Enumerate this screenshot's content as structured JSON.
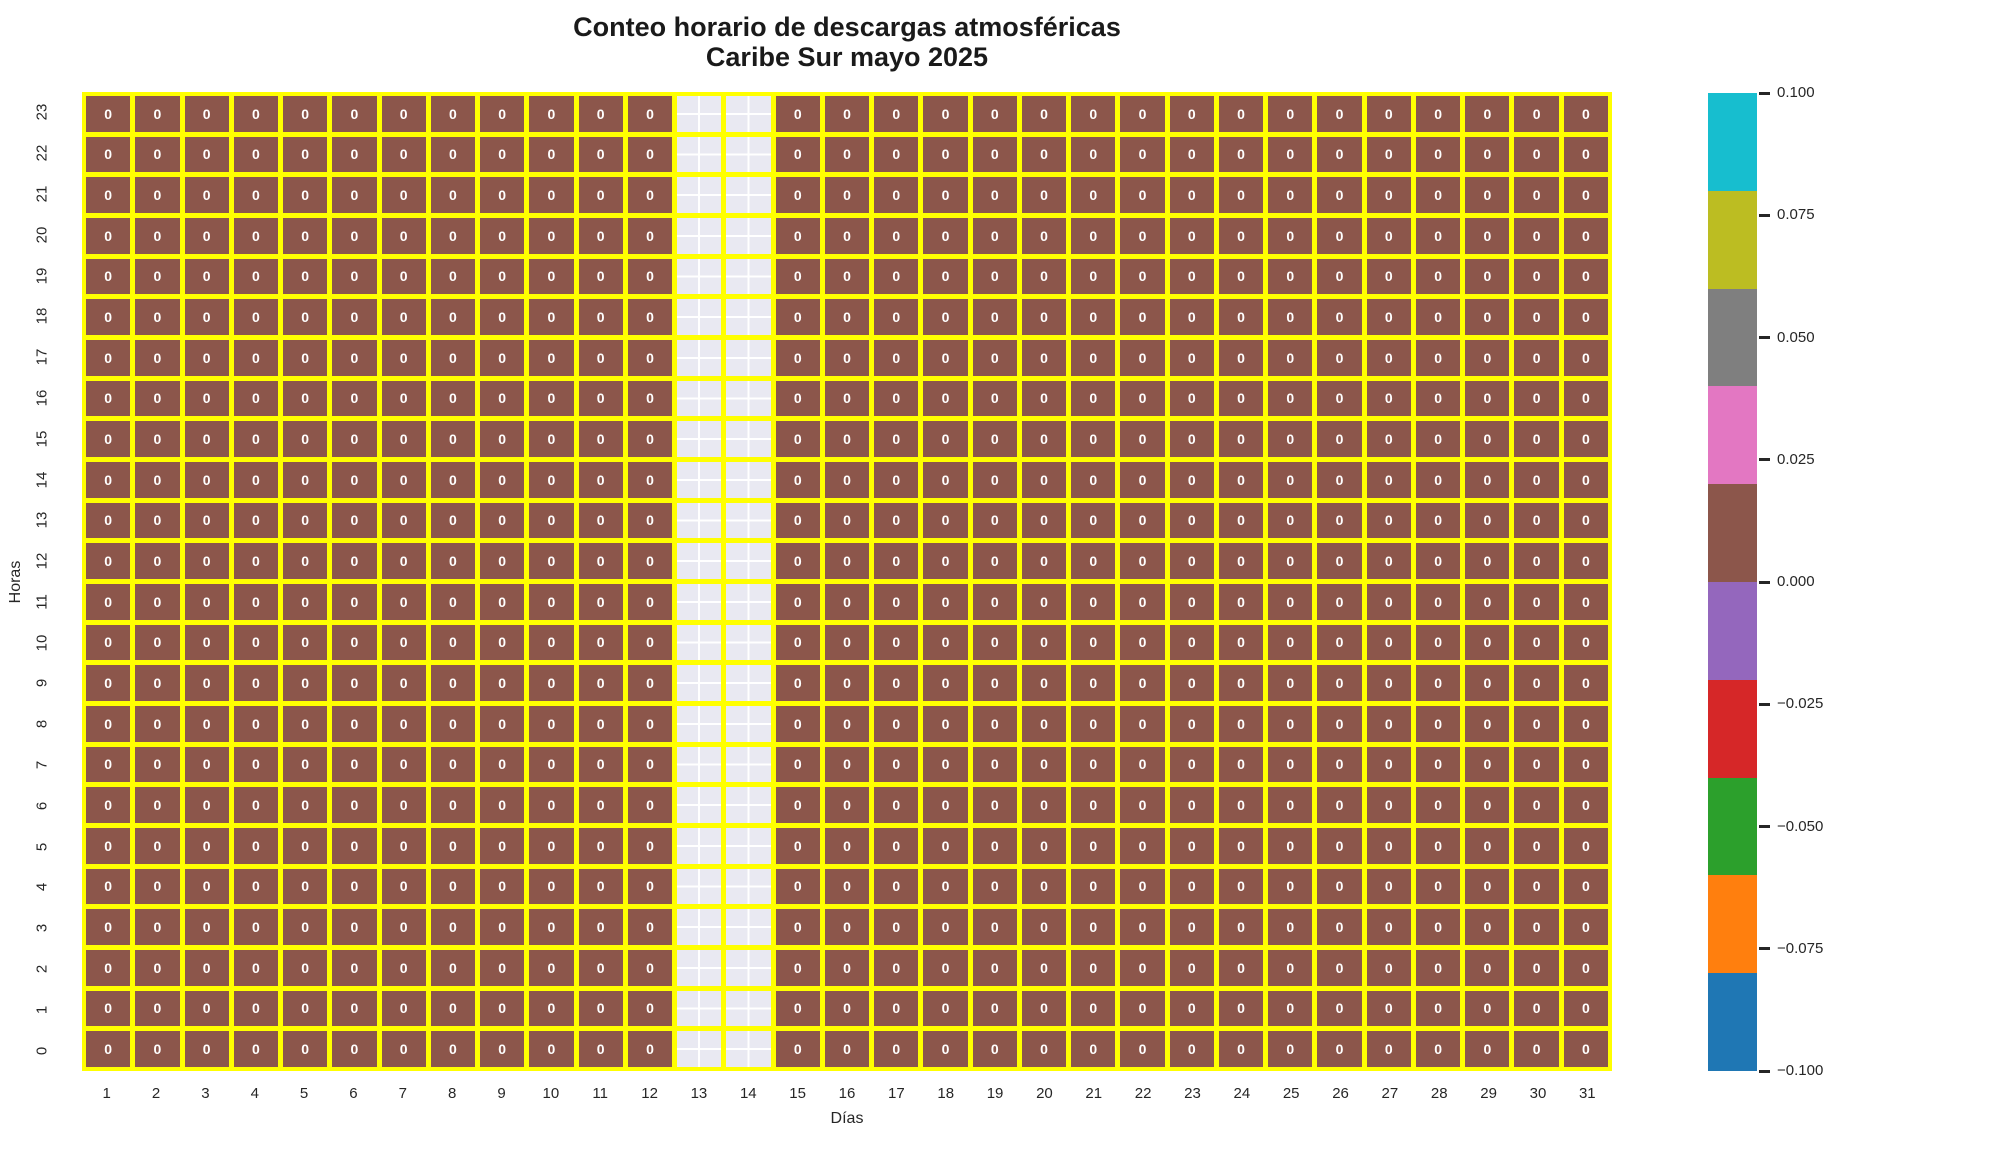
{
  "title": {
    "line1": "Conteo horario de descargas atmosféricas",
    "line2": "Caribe Sur mayo 2025"
  },
  "axes": {
    "xlabel": "Días",
    "ylabel": "Horas"
  },
  "chart_data": {
    "type": "heatmap",
    "title": "Conteo horario de descargas atmosféricas Caribe Sur mayo 2025",
    "xlabel": "Días",
    "ylabel": "Horas",
    "x_categories": [
      "1",
      "2",
      "3",
      "4",
      "5",
      "6",
      "7",
      "8",
      "9",
      "10",
      "11",
      "12",
      "13",
      "14",
      "15",
      "16",
      "17",
      "18",
      "19",
      "20",
      "21",
      "22",
      "23",
      "24",
      "25",
      "26",
      "27",
      "28",
      "29",
      "30",
      "31"
    ],
    "y_categories_top_to_bottom": [
      "23",
      "22",
      "21",
      "20",
      "19",
      "18",
      "17",
      "16",
      "15",
      "14",
      "13",
      "12",
      "11",
      "10",
      "9",
      "8",
      "7",
      "6",
      "5",
      "4",
      "3",
      "2",
      "1",
      "0"
    ],
    "missing_value_days": [
      "13",
      "14"
    ],
    "annotation_format": "integer",
    "values_rows_top_to_bottom": [
      [
        0,
        0,
        0,
        0,
        0,
        0,
        0,
        0,
        0,
        0,
        0,
        0,
        null,
        null,
        0,
        0,
        0,
        0,
        0,
        0,
        0,
        0,
        0,
        0,
        0,
        0,
        0,
        0,
        0,
        0,
        0
      ],
      [
        0,
        0,
        0,
        0,
        0,
        0,
        0,
        0,
        0,
        0,
        0,
        0,
        null,
        null,
        0,
        0,
        0,
        0,
        0,
        0,
        0,
        0,
        0,
        0,
        0,
        0,
        0,
        0,
        0,
        0,
        0
      ],
      [
        0,
        0,
        0,
        0,
        0,
        0,
        0,
        0,
        0,
        0,
        0,
        0,
        null,
        null,
        0,
        0,
        0,
        0,
        0,
        0,
        0,
        0,
        0,
        0,
        0,
        0,
        0,
        0,
        0,
        0,
        0
      ],
      [
        0,
        0,
        0,
        0,
        0,
        0,
        0,
        0,
        0,
        0,
        0,
        0,
        null,
        null,
        0,
        0,
        0,
        0,
        0,
        0,
        0,
        0,
        0,
        0,
        0,
        0,
        0,
        0,
        0,
        0,
        0
      ],
      [
        0,
        0,
        0,
        0,
        0,
        0,
        0,
        0,
        0,
        0,
        0,
        0,
        null,
        null,
        0,
        0,
        0,
        0,
        0,
        0,
        0,
        0,
        0,
        0,
        0,
        0,
        0,
        0,
        0,
        0,
        0
      ],
      [
        0,
        0,
        0,
        0,
        0,
        0,
        0,
        0,
        0,
        0,
        0,
        0,
        null,
        null,
        0,
        0,
        0,
        0,
        0,
        0,
        0,
        0,
        0,
        0,
        0,
        0,
        0,
        0,
        0,
        0,
        0
      ],
      [
        0,
        0,
        0,
        0,
        0,
        0,
        0,
        0,
        0,
        0,
        0,
        0,
        null,
        null,
        0,
        0,
        0,
        0,
        0,
        0,
        0,
        0,
        0,
        0,
        0,
        0,
        0,
        0,
        0,
        0,
        0
      ],
      [
        0,
        0,
        0,
        0,
        0,
        0,
        0,
        0,
        0,
        0,
        0,
        0,
        null,
        null,
        0,
        0,
        0,
        0,
        0,
        0,
        0,
        0,
        0,
        0,
        0,
        0,
        0,
        0,
        0,
        0,
        0
      ],
      [
        0,
        0,
        0,
        0,
        0,
        0,
        0,
        0,
        0,
        0,
        0,
        0,
        null,
        null,
        0,
        0,
        0,
        0,
        0,
        0,
        0,
        0,
        0,
        0,
        0,
        0,
        0,
        0,
        0,
        0,
        0
      ],
      [
        0,
        0,
        0,
        0,
        0,
        0,
        0,
        0,
        0,
        0,
        0,
        0,
        null,
        null,
        0,
        0,
        0,
        0,
        0,
        0,
        0,
        0,
        0,
        0,
        0,
        0,
        0,
        0,
        0,
        0,
        0
      ],
      [
        0,
        0,
        0,
        0,
        0,
        0,
        0,
        0,
        0,
        0,
        0,
        0,
        null,
        null,
        0,
        0,
        0,
        0,
        0,
        0,
        0,
        0,
        0,
        0,
        0,
        0,
        0,
        0,
        0,
        0,
        0
      ],
      [
        0,
        0,
        0,
        0,
        0,
        0,
        0,
        0,
        0,
        0,
        0,
        0,
        null,
        null,
        0,
        0,
        0,
        0,
        0,
        0,
        0,
        0,
        0,
        0,
        0,
        0,
        0,
        0,
        0,
        0,
        0
      ],
      [
        0,
        0,
        0,
        0,
        0,
        0,
        0,
        0,
        0,
        0,
        0,
        0,
        null,
        null,
        0,
        0,
        0,
        0,
        0,
        0,
        0,
        0,
        0,
        0,
        0,
        0,
        0,
        0,
        0,
        0,
        0
      ],
      [
        0,
        0,
        0,
        0,
        0,
        0,
        0,
        0,
        0,
        0,
        0,
        0,
        null,
        null,
        0,
        0,
        0,
        0,
        0,
        0,
        0,
        0,
        0,
        0,
        0,
        0,
        0,
        0,
        0,
        0,
        0
      ],
      [
        0,
        0,
        0,
        0,
        0,
        0,
        0,
        0,
        0,
        0,
        0,
        0,
        null,
        null,
        0,
        0,
        0,
        0,
        0,
        0,
        0,
        0,
        0,
        0,
        0,
        0,
        0,
        0,
        0,
        0,
        0
      ],
      [
        0,
        0,
        0,
        0,
        0,
        0,
        0,
        0,
        0,
        0,
        0,
        0,
        null,
        null,
        0,
        0,
        0,
        0,
        0,
        0,
        0,
        0,
        0,
        0,
        0,
        0,
        0,
        0,
        0,
        0,
        0
      ],
      [
        0,
        0,
        0,
        0,
        0,
        0,
        0,
        0,
        0,
        0,
        0,
        0,
        null,
        null,
        0,
        0,
        0,
        0,
        0,
        0,
        0,
        0,
        0,
        0,
        0,
        0,
        0,
        0,
        0,
        0,
        0
      ],
      [
        0,
        0,
        0,
        0,
        0,
        0,
        0,
        0,
        0,
        0,
        0,
        0,
        null,
        null,
        0,
        0,
        0,
        0,
        0,
        0,
        0,
        0,
        0,
        0,
        0,
        0,
        0,
        0,
        0,
        0,
        0
      ],
      [
        0,
        0,
        0,
        0,
        0,
        0,
        0,
        0,
        0,
        0,
        0,
        0,
        null,
        null,
        0,
        0,
        0,
        0,
        0,
        0,
        0,
        0,
        0,
        0,
        0,
        0,
        0,
        0,
        0,
        0,
        0
      ],
      [
        0,
        0,
        0,
        0,
        0,
        0,
        0,
        0,
        0,
        0,
        0,
        0,
        null,
        null,
        0,
        0,
        0,
        0,
        0,
        0,
        0,
        0,
        0,
        0,
        0,
        0,
        0,
        0,
        0,
        0,
        0
      ],
      [
        0,
        0,
        0,
        0,
        0,
        0,
        0,
        0,
        0,
        0,
        0,
        0,
        null,
        null,
        0,
        0,
        0,
        0,
        0,
        0,
        0,
        0,
        0,
        0,
        0,
        0,
        0,
        0,
        0,
        0,
        0
      ],
      [
        0,
        0,
        0,
        0,
        0,
        0,
        0,
        0,
        0,
        0,
        0,
        0,
        null,
        null,
        0,
        0,
        0,
        0,
        0,
        0,
        0,
        0,
        0,
        0,
        0,
        0,
        0,
        0,
        0,
        0,
        0
      ],
      [
        0,
        0,
        0,
        0,
        0,
        0,
        0,
        0,
        0,
        0,
        0,
        0,
        null,
        null,
        0,
        0,
        0,
        0,
        0,
        0,
        0,
        0,
        0,
        0,
        0,
        0,
        0,
        0,
        0,
        0,
        0
      ],
      [
        0,
        0,
        0,
        0,
        0,
        0,
        0,
        0,
        0,
        0,
        0,
        0,
        null,
        null,
        0,
        0,
        0,
        0,
        0,
        0,
        0,
        0,
        0,
        0,
        0,
        0,
        0,
        0,
        0,
        0,
        0
      ]
    ],
    "colorbar": {
      "range": [
        -0.1,
        0.1
      ],
      "tick_labels_top_to_bottom": [
        "0.100",
        "0.075",
        "0.050",
        "0.025",
        "0.000",
        "−0.025",
        "−0.050",
        "−0.075",
        "−0.100"
      ],
      "segments_top_to_bottom": [
        {
          "color": "#17becf",
          "from": 0.08,
          "to": 0.1
        },
        {
          "color": "#bcbd22",
          "from": 0.06,
          "to": 0.08
        },
        {
          "color": "#7f7f7f",
          "from": 0.04,
          "to": 0.06
        },
        {
          "color": "#e377c2",
          "from": 0.02,
          "to": 0.04
        },
        {
          "color": "#8c564b",
          "from": 0.0,
          "to": 0.02
        },
        {
          "color": "#9467bd",
          "from": -0.02,
          "to": 0.0
        },
        {
          "color": "#d62728",
          "from": -0.04,
          "to": -0.02
        },
        {
          "color": "#2ca02c",
          "from": -0.06,
          "to": -0.04
        },
        {
          "color": "#ff7f0e",
          "from": -0.08,
          "to": -0.06
        },
        {
          "color": "#1f77b4",
          "from": -0.1,
          "to": -0.08
        }
      ]
    },
    "colors": {
      "cell_fill": "#8c564b",
      "cell_text": "#ffffff",
      "grid_line": "#ffff00",
      "missing_fill": "#e9e9f2",
      "missing_grid": "#ffffff",
      "tick_text": "#262626",
      "title_text": "#1a1a1a",
      "background": "#ffffff"
    }
  }
}
